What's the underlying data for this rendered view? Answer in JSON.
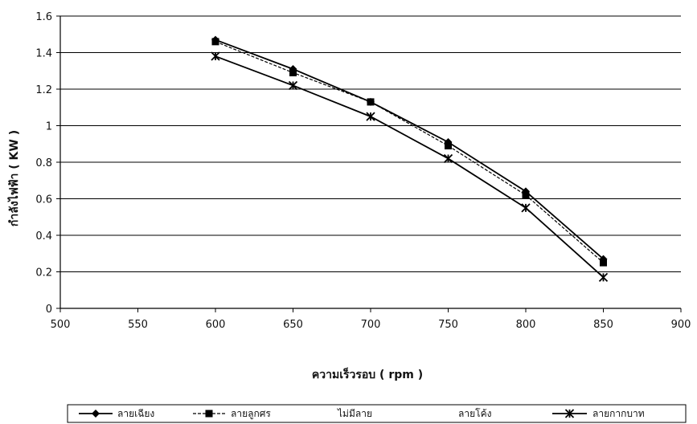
{
  "chart_data": {
    "type": "line",
    "title": "",
    "xlabel": "ความเร็วรอบ ( rpm )",
    "ylabel": "กำลังไฟฟ้า ( KW )",
    "x": [
      600,
      650,
      700,
      750,
      800,
      850
    ],
    "xlim": [
      500,
      900
    ],
    "ylim": [
      0,
      1.6
    ],
    "x_ticks": [
      500,
      550,
      600,
      650,
      700,
      750,
      800,
      850,
      900
    ],
    "y_ticks": [
      0,
      0.2,
      0.4,
      0.6,
      0.8,
      1,
      1.2,
      1.4,
      1.6
    ],
    "grid": "horizontal",
    "legend_position": "bottom",
    "series": [
      {
        "name": "ลายเฉียง",
        "values": [
          1.47,
          1.31,
          1.13,
          0.91,
          0.64,
          0.27
        ],
        "marker": "diamond",
        "dash": "solid",
        "color": "#000000"
      },
      {
        "name": "ลายลูกศร",
        "values": [
          1.46,
          1.29,
          1.13,
          0.89,
          0.62,
          0.25
        ],
        "marker": "square",
        "dash": "dashed",
        "color": "#000000"
      },
      {
        "name": "ไม่มีลาย",
        "values": [
          1.46,
          1.29,
          1.12,
          0.88,
          0.62,
          0.24
        ],
        "marker": "none",
        "dash": "none",
        "color": "#000000"
      },
      {
        "name": "ลายโค้ง",
        "values": [
          1.47,
          1.31,
          1.13,
          0.9,
          0.63,
          0.25
        ],
        "marker": "none",
        "dash": "none",
        "color": "#000000"
      },
      {
        "name": "ลายกากบาท",
        "values": [
          1.38,
          1.22,
          1.05,
          0.82,
          0.55,
          0.17
        ],
        "marker": "x",
        "dash": "solid",
        "color": "#000000"
      }
    ]
  }
}
